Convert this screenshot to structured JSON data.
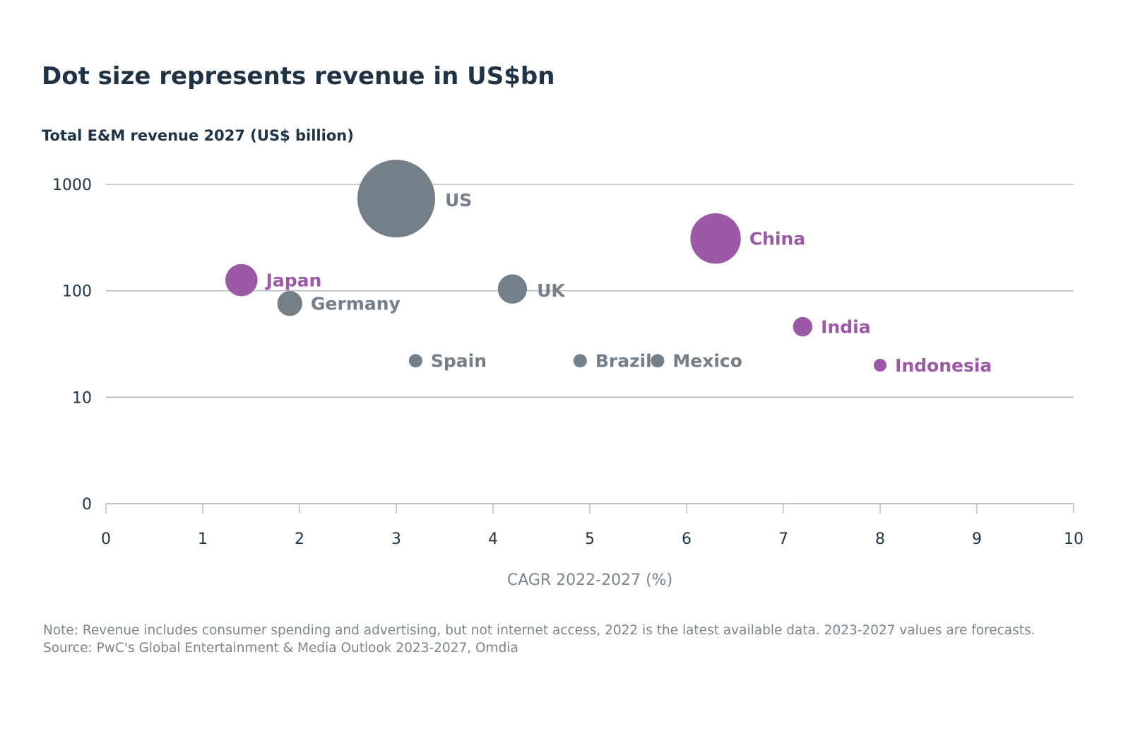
{
  "title": "Dot size represents revenue in US$bn",
  "note": "Note: Revenue includes consumer spending and advertising, but not internet access, 2022 is the latest available data. 2023-2027 values are forecasts.",
  "source": "Source: PwC's Global Entertainment & Media Outlook 2023-2027, Omdia",
  "colors": {
    "grey": "#747f88",
    "purple": "#9b59a6",
    "text": "#1f3344",
    "grid": "#a7b0b8"
  },
  "chart_data": {
    "type": "scatter",
    "title": "Dot size represents revenue in US$bn",
    "xlabel": "CAGR 2022-2027 (%)",
    "ylabel": "Total E&M revenue 2027 (US$ billion)",
    "xlim": [
      0,
      10
    ],
    "ylim": [
      1,
      1000
    ],
    "yscale": "log",
    "grid": "horizontal",
    "xticks": [
      "0",
      "1",
      "2",
      "3",
      "4",
      "5",
      "6",
      "7",
      "8",
      "9",
      "10"
    ],
    "yticks": [
      {
        "label": "0",
        "value": 1
      },
      {
        "label": "10",
        "value": 10
      },
      {
        "label": "100",
        "value": 100
      },
      {
        "label": "1000",
        "value": 1000
      }
    ],
    "bubble_size": "revenue",
    "points": [
      {
        "name": "US",
        "x": 3.0,
        "y": 735,
        "color": "grey"
      },
      {
        "name": "China",
        "x": 6.3,
        "y": 310,
        "color": "purple"
      },
      {
        "name": "Japan",
        "x": 1.4,
        "y": 126,
        "color": "purple"
      },
      {
        "name": "UK",
        "x": 4.2,
        "y": 104,
        "color": "grey"
      },
      {
        "name": "Germany",
        "x": 1.9,
        "y": 76,
        "color": "grey"
      },
      {
        "name": "India",
        "x": 7.2,
        "y": 46,
        "color": "purple"
      },
      {
        "name": "Spain",
        "x": 3.2,
        "y": 22,
        "color": "grey"
      },
      {
        "name": "Brazil",
        "x": 4.9,
        "y": 22,
        "color": "grey"
      },
      {
        "name": "Mexico",
        "x": 5.7,
        "y": 22,
        "color": "grey"
      },
      {
        "name": "Indonesia",
        "x": 8.0,
        "y": 20,
        "color": "purple"
      }
    ]
  }
}
